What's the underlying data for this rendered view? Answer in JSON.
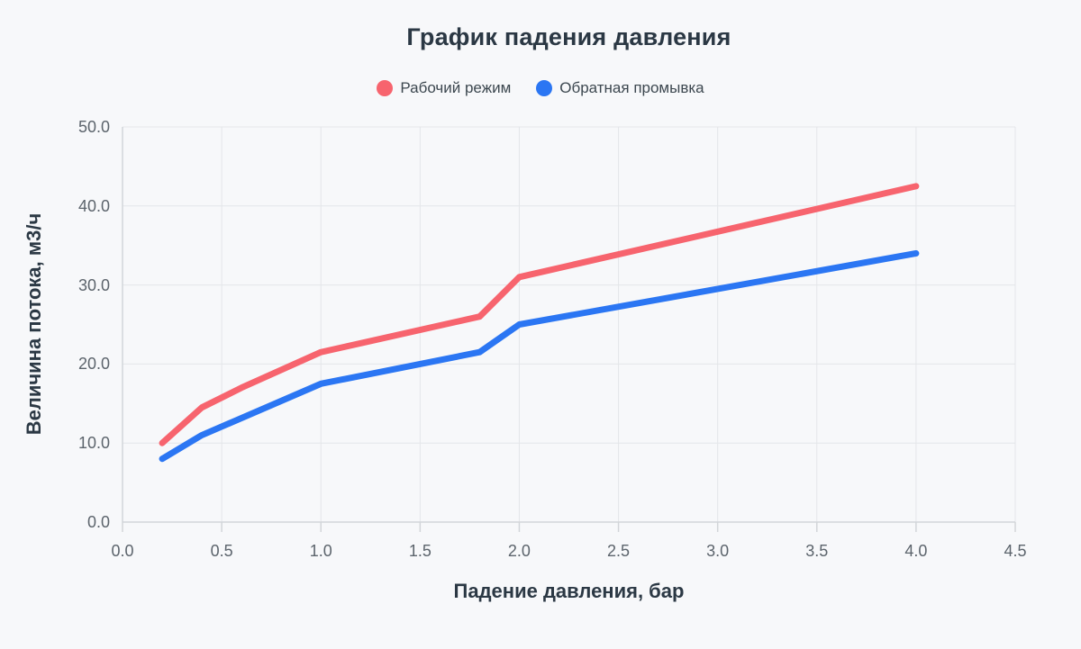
{
  "colors": {
    "background": "#f7f8fa",
    "grid": "#e4e6e9",
    "axis": "#d2d5d9",
    "title_text": "#2b3844",
    "tick_text": "#5c646c",
    "work_mode_red": "#f7646e",
    "backwash_blue": "#2b76f3"
  },
  "legend": [
    {
      "label": "Рабочий режим",
      "color": "#f7646e"
    },
    {
      "label": "Обратная промывка",
      "color": "#2b76f3"
    }
  ],
  "chart_data": {
    "type": "line",
    "title": "График падения давления",
    "xlabel": "Падение давления, бар",
    "ylabel": "Величина потока, м3/ч",
    "xlim": [
      0,
      4.5
    ],
    "ylim": [
      0,
      50
    ],
    "grid": true,
    "legend_position": "top",
    "xticks": [
      0.0,
      0.5,
      1.0,
      1.5,
      2.0,
      2.5,
      3.0,
      3.5,
      4.0,
      4.5
    ],
    "yticks": [
      0,
      10,
      20,
      30,
      40,
      50
    ],
    "x_tick_labels": [
      "0.0",
      "0.5",
      "1.0",
      "1.5",
      "2.0",
      "2.5",
      "3.0",
      "3.5",
      "4.0",
      "4.5"
    ],
    "y_tick_labels": [
      "0.0",
      "10.0",
      "20.0",
      "30.0",
      "40.0",
      "50.0"
    ],
    "series": [
      {
        "name": "Рабочий режим",
        "color": "#f7646e",
        "points": [
          [
            0.2,
            10
          ],
          [
            0.4,
            14.5
          ],
          [
            0.6,
            17
          ],
          [
            1.0,
            21.5
          ],
          [
            1.8,
            26
          ],
          [
            2.0,
            31
          ],
          [
            4.0,
            42.5
          ]
        ]
      },
      {
        "name": "Обратная промывка",
        "color": "#2b76f3",
        "points": [
          [
            0.2,
            8
          ],
          [
            0.4,
            11
          ],
          [
            1.0,
            17.5
          ],
          [
            1.8,
            21.5
          ],
          [
            2.0,
            25
          ],
          [
            4.0,
            34
          ]
        ]
      }
    ]
  }
}
